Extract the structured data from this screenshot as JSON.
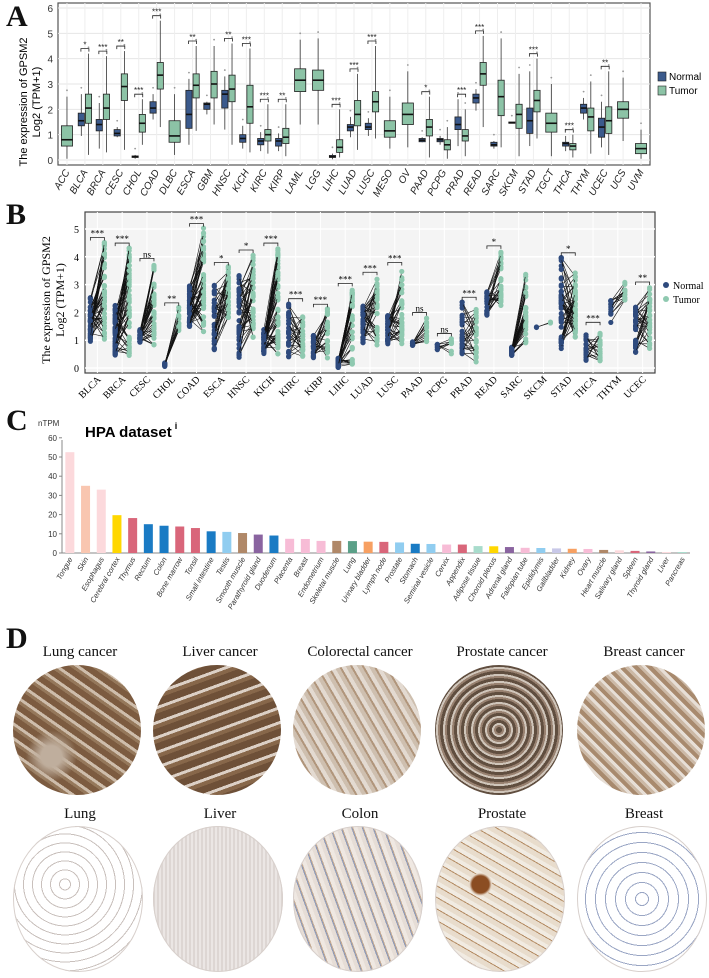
{
  "panels": {
    "a": "A",
    "b": "B",
    "c": "C",
    "d": "D"
  },
  "colors": {
    "normal": "#2e4a7d",
    "tumor": "#8fc9b0",
    "normal_fill": "#3b5a8c",
    "tumor_fill": "#8cc3a6"
  },
  "chart_data": [
    {
      "type": "box",
      "ylabel_line1": "The expression of GPSM2",
      "ylabel_line2": "Log2 (TPM+1)",
      "ylim": [
        0,
        6
      ],
      "yticks": [
        0,
        1,
        2,
        3,
        4,
        5,
        6
      ],
      "grid": true,
      "legend": {
        "position": "right",
        "items": [
          "Normal",
          "Tumor"
        ]
      },
      "categories": [
        "ACC",
        "BLCA",
        "BRCA",
        "CESC",
        "CHOL",
        "COAD",
        "DLBC",
        "ESCA",
        "GBM",
        "HNSC",
        "KICH",
        "KIRC",
        "KIRP",
        "LAML",
        "LGG",
        "LIHC",
        "LUAD",
        "LUSC",
        "MESO",
        "OV",
        "PAAD",
        "PCPG",
        "PRAD",
        "READ",
        "SARC",
        "SKCM",
        "STAD",
        "TGCT",
        "THCA",
        "THYM",
        "UCEC",
        "UCS",
        "UVM"
      ],
      "series": [
        {
          "name": "Normal",
          "boxes": [
            null,
            [
              0.95,
              1.35,
              1.55,
              1.85,
              2.6
            ],
            [
              0.45,
              1.15,
              1.4,
              1.6,
              2.25
            ],
            [
              0.9,
              0.95,
              1.05,
              1.2,
              1.3
            ],
            [
              0.05,
              0.1,
              0.13,
              0.16,
              0.2
            ],
            [
              1.6,
              1.85,
              2.05,
              2.3,
              2.6
            ],
            null,
            [
              0.6,
              1.25,
              1.8,
              2.75,
              3.2
            ],
            [
              1.8,
              2.0,
              2.2,
              2.25,
              2.3
            ],
            [
              1.2,
              2.05,
              2.6,
              2.75,
              3.3
            ],
            [
              0.45,
              0.7,
              0.85,
              1.0,
              1.35
            ],
            [
              0.35,
              0.6,
              0.75,
              0.85,
              1.1
            ],
            [
              0.35,
              0.55,
              0.75,
              0.85,
              1.05
            ],
            null,
            null,
            [
              0.03,
              0.1,
              0.13,
              0.18,
              0.25
            ],
            [
              0.9,
              1.15,
              1.3,
              1.4,
              1.7
            ],
            [
              0.95,
              1.2,
              1.3,
              1.45,
              1.65
            ],
            null,
            null,
            [
              0.7,
              0.72,
              0.78,
              0.85,
              0.9
            ],
            [
              0.6,
              0.72,
              0.8,
              0.85,
              0.95
            ],
            [
              0.55,
              1.2,
              1.4,
              1.7,
              2.4
            ],
            [
              1.95,
              2.25,
              2.45,
              2.6,
              2.8
            ],
            [
              0.45,
              0.55,
              0.6,
              0.7,
              0.75
            ],
            [
              1.45,
              1.45,
              1.47,
              1.5,
              1.5
            ],
            [
              0.55,
              1.05,
              1.55,
              2.05,
              3.5
            ],
            null,
            [
              0.35,
              0.55,
              0.65,
              0.7,
              0.95
            ],
            [
              1.6,
              1.85,
              2.05,
              2.2,
              2.45
            ],
            [
              0.5,
              0.9,
              1.3,
              1.65,
              2.3
            ],
            null,
            null
          ]
        },
        {
          "name": "Tumor",
          "boxes": [
            [
              0.05,
              0.55,
              0.8,
              1.35,
              2.5
            ],
            [
              0.2,
              1.45,
              2.05,
              2.6,
              4.2
            ],
            [
              0.3,
              1.6,
              2.05,
              2.6,
              4.1
            ],
            [
              0.4,
              2.35,
              2.9,
              3.4,
              4.3
            ],
            [
              0.6,
              1.1,
              1.45,
              1.8,
              2.4
            ],
            [
              1.3,
              2.8,
              3.35,
              3.85,
              5.5
            ],
            [
              0.2,
              0.7,
              0.95,
              1.55,
              2.6
            ],
            [
              1.15,
              2.45,
              2.95,
              3.4,
              4.5
            ],
            [
              1.4,
              2.45,
              3.0,
              3.5,
              4.5
            ],
            [
              0.6,
              2.3,
              2.8,
              3.35,
              4.6
            ],
            [
              0.3,
              1.45,
              2.1,
              2.95,
              4.4
            ],
            [
              0.25,
              0.75,
              1.0,
              1.2,
              2.2
            ],
            [
              0.15,
              0.65,
              0.9,
              1.25,
              2.2
            ],
            [
              1.4,
              2.7,
              3.15,
              3.6,
              4.75
            ],
            [
              1.4,
              2.75,
              3.15,
              3.55,
              4.8
            ],
            [
              0.1,
              0.3,
              0.5,
              0.8,
              2.0
            ],
            [
              0.4,
              1.35,
              1.8,
              2.35,
              3.4
            ],
            [
              0.85,
              1.9,
              2.3,
              2.7,
              4.5
            ],
            [
              0.45,
              0.9,
              1.15,
              1.55,
              2.5
            ],
            [
              0.5,
              1.4,
              1.8,
              2.25,
              3.5
            ],
            [
              0.1,
              0.95,
              1.3,
              1.6,
              2.5
            ],
            [
              0.05,
              0.4,
              0.6,
              0.8,
              1.3
            ],
            [
              0.15,
              0.75,
              0.95,
              1.2,
              2.0
            ],
            [
              1.3,
              2.95,
              3.4,
              3.85,
              4.9
            ],
            [
              0.5,
              1.75,
              2.5,
              3.15,
              4.8
            ],
            [
              0.15,
              1.25,
              1.8,
              2.2,
              3.4
            ],
            [
              0.85,
              1.9,
              2.35,
              2.75,
              4.0
            ],
            [
              0.15,
              1.1,
              1.45,
              1.85,
              3.0
            ],
            [
              0.1,
              0.4,
              0.55,
              0.65,
              1.0
            ],
            [
              0.25,
              1.15,
              1.7,
              2.05,
              3.1
            ],
            [
              0.2,
              1.05,
              1.55,
              2.1,
              3.5
            ],
            [
              0.75,
              1.65,
              2.0,
              2.3,
              3.25
            ],
            [
              0.05,
              0.25,
              0.45,
              0.65,
              1.2
            ]
          ]
        }
      ],
      "significance": [
        "",
        "*",
        "***",
        "**",
        "***",
        "***",
        "",
        "**",
        "",
        "**",
        "***",
        "***",
        "**",
        "",
        "",
        "***",
        "***",
        "***",
        "",
        "",
        "*",
        "",
        "***",
        "***",
        "",
        "",
        "***",
        "",
        "***",
        "",
        "**",
        "",
        ""
      ]
    },
    {
      "type": "paired-scatter",
      "ylabel_line1": "The expression  of GPSM2",
      "ylabel_line2": "Log2 (TPM+1)",
      "ylim": [
        0,
        5
      ],
      "yticks": [
        0,
        1,
        2,
        3,
        4,
        5
      ],
      "grid": true,
      "legend": {
        "position": "right",
        "items": [
          "Normal",
          "Tumor"
        ]
      },
      "categories": [
        "BLCA",
        "BRCA",
        "CESC",
        "CHOL",
        "COAD",
        "ESCA",
        "HNSC",
        "KICH",
        "KIRC",
        "KIRP",
        "LIHC",
        "LUAD",
        "LUSC",
        "PAAD",
        "PCPG",
        "PRAD",
        "READ",
        "SARC",
        "SKCM",
        "STAD",
        "THCA",
        "THYM",
        "UCEC"
      ],
      "normal_range": [
        [
          0.95,
          2.6
        ],
        [
          0.45,
          2.3
        ],
        [
          0.9,
          1.4
        ],
        [
          0.05,
          0.2
        ],
        [
          1.5,
          3.0
        ],
        [
          0.65,
          3.05
        ],
        [
          0.25,
          3.35
        ],
        [
          0.5,
          1.4
        ],
        [
          0.35,
          2.35
        ],
        [
          0.35,
          1.2
        ],
        [
          0.02,
          0.35
        ],
        [
          0.9,
          2.25
        ],
        [
          0.85,
          1.9
        ],
        [
          0.7,
          0.95
        ],
        [
          0.65,
          0.9
        ],
        [
          0.5,
          2.4
        ],
        [
          1.9,
          2.75
        ],
        [
          0.45,
          0.75
        ],
        [
          1.45,
          1.5
        ],
        [
          0.5,
          4.0
        ],
        [
          0.25,
          1.2
        ],
        [
          1.6,
          2.45
        ],
        [
          0.5,
          2.35
        ]
      ],
      "tumor_range": [
        [
          0.95,
          4.55
        ],
        [
          0.45,
          4.35
        ],
        [
          0.75,
          3.8
        ],
        [
          1.3,
          2.2
        ],
        [
          1.3,
          5.05
        ],
        [
          1.8,
          3.65
        ],
        [
          1.1,
          4.1
        ],
        [
          0.5,
          4.35
        ],
        [
          0.4,
          1.9
        ],
        [
          0.35,
          2.15
        ],
        [
          0.1,
          2.9
        ],
        [
          0.8,
          3.3
        ],
        [
          0.85,
          3.65
        ],
        [
          0.95,
          1.85
        ],
        [
          0.5,
          1.1
        ],
        [
          0.15,
          2.15
        ],
        [
          2.25,
          4.25
        ],
        [
          0.9,
          3.4
        ],
        [
          1.6,
          1.65
        ],
        [
          1.05,
          3.45
        ],
        [
          0.25,
          1.5
        ],
        [
          2.4,
          3.1
        ],
        [
          0.7,
          2.95
        ]
      ],
      "significance": [
        "***",
        "***",
        "ns",
        "**",
        "***",
        "*",
        "*",
        "***",
        "***",
        "***",
        "***",
        "***",
        "***",
        "ns",
        "ns",
        "***",
        "*",
        "",
        "",
        "*",
        "***",
        "",
        "**"
      ]
    },
    {
      "type": "bar",
      "title": "HPA dataset",
      "title_superscript": "i",
      "ylabel": "nTPM",
      "ylim": [
        0,
        60
      ],
      "yticks": [
        0,
        10,
        20,
        30,
        40,
        50,
        60
      ],
      "categories": [
        "Tongue",
        "Skin",
        "Esophagus",
        "Cerebral cortex",
        "Thymus",
        "Rectum",
        "Colon",
        "Bone marrow",
        "Tonsil",
        "Small intestine",
        "Testis",
        "Smooth muscle",
        "Parathyroid gland",
        "Duodenum",
        "Placenta",
        "Breast",
        "Endometrium",
        "Skeletal muscle",
        "Lung",
        "Urinary bladder",
        "Lymph node",
        "Prostate",
        "Stomach",
        "Seminal vesicle",
        "Cervix",
        "Appendix",
        "Adipose tissue",
        "Choroid plexus",
        "Adrenal gland",
        "Fallopian tube",
        "Epididymis",
        "Gallbladder",
        "Kidney",
        "Ovary",
        "Heart muscle",
        "Salivary gland",
        "Spleen",
        "Thyroid gland",
        "Liver",
        "Pancreas"
      ],
      "values": [
        52.5,
        35,
        33,
        19.7,
        18.2,
        15,
        14.2,
        13.8,
        13,
        11.3,
        11,
        10.4,
        9.6,
        9.1,
        7.4,
        7.3,
        6.3,
        6.3,
        6.2,
        5.9,
        5.8,
        5.5,
        4.8,
        4.7,
        4.4,
        4.4,
        3.6,
        3.5,
        3.1,
        2.7,
        2.6,
        2.4,
        2.2,
        2.1,
        1.6,
        1.4,
        1.1,
        0.8,
        0.5,
        0.5
      ],
      "bar_colors": [
        "#fcd9dc",
        "#f9c6b0",
        "#fcd9dc",
        "#ffd700",
        "#d9667a",
        "#1a7bc4",
        "#1a7bc4",
        "#d9667a",
        "#d9667a",
        "#1a7bc4",
        "#90cdf0",
        "#b08868",
        "#8a64a0",
        "#1a7bc4",
        "#f7bcd6",
        "#f7bcd6",
        "#f7bcd6",
        "#b08868",
        "#5aa088",
        "#f7a062",
        "#d9667a",
        "#90cdf0",
        "#1a7bc4",
        "#90cdf0",
        "#f7bcd6",
        "#d9667a",
        "#a8dccc",
        "#ffd700",
        "#8a64a0",
        "#f7bcd6",
        "#90cdf0",
        "#c8c8e8",
        "#f7a062",
        "#f7bcd6",
        "#b08868",
        "#fcd9dc",
        "#d9667a",
        "#8a64a0",
        "#fcd9dc",
        "#a8dccc"
      ]
    }
  ],
  "ihc": {
    "tumor": [
      "Lung cancer",
      "Liver cancer",
      "Colorectal cancer",
      "Prostate cancer",
      "Breast cancer"
    ],
    "normal": [
      "Lung",
      "Liver",
      "Colon",
      "Prostate",
      "Breast"
    ]
  }
}
